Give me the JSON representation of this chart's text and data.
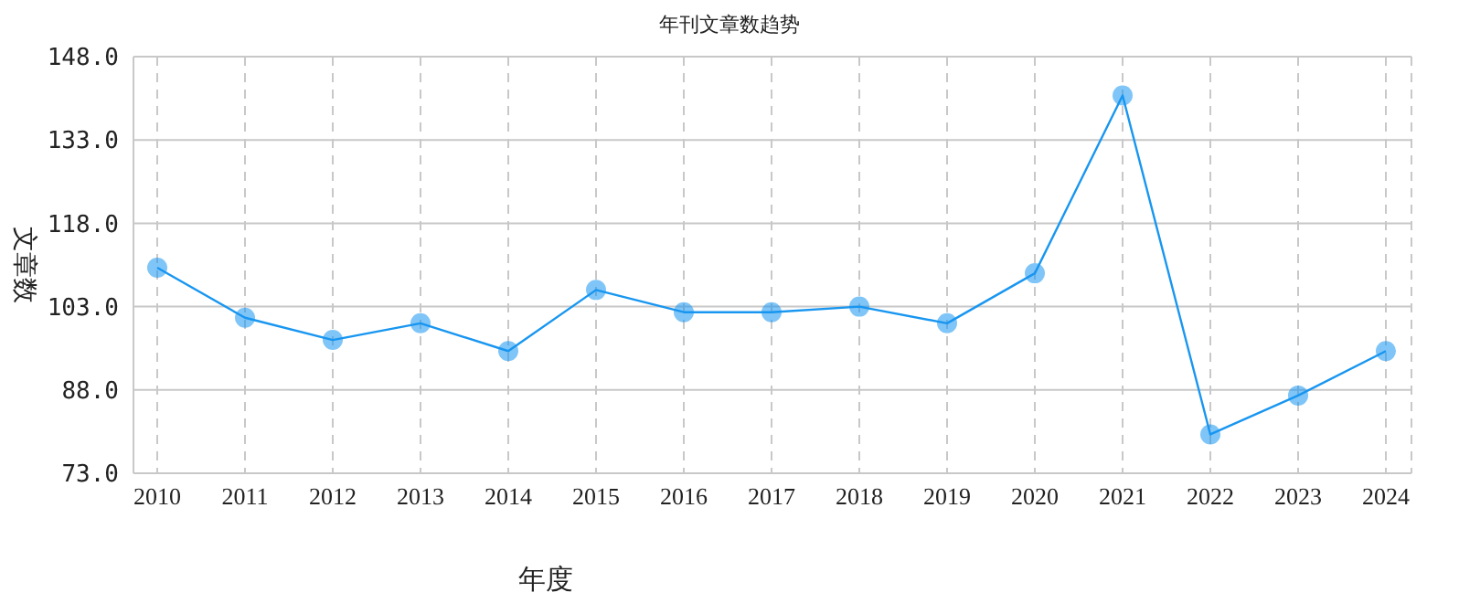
{
  "chart_data": {
    "type": "line",
    "title": "年刊文章数趋势",
    "xlabel": "年度",
    "ylabel": "文章数",
    "categories": [
      "2010",
      "2011",
      "2012",
      "2013",
      "2014",
      "2015",
      "2016",
      "2017",
      "2018",
      "2019",
      "2020",
      "2021",
      "2022",
      "2023",
      "2024"
    ],
    "series": [
      {
        "color": "#1896f0",
        "values": [
          110,
          101,
          97,
          100,
          95,
          106,
          102,
          102,
          103,
          100,
          109,
          141,
          80,
          87,
          95
        ]
      }
    ],
    "ylim": [
      73,
      148
    ],
    "yticks": [
      {
        "value": 73,
        "label": "73.0"
      },
      {
        "value": 88,
        "label": "88.0"
      },
      {
        "value": 103,
        "label": "103.0"
      },
      {
        "value": 118,
        "label": "118.0"
      },
      {
        "value": 133,
        "label": "133.0"
      },
      {
        "value": 148,
        "label": "148.0"
      }
    ],
    "grid": true,
    "marker": "circle",
    "line_style": "solid"
  }
}
